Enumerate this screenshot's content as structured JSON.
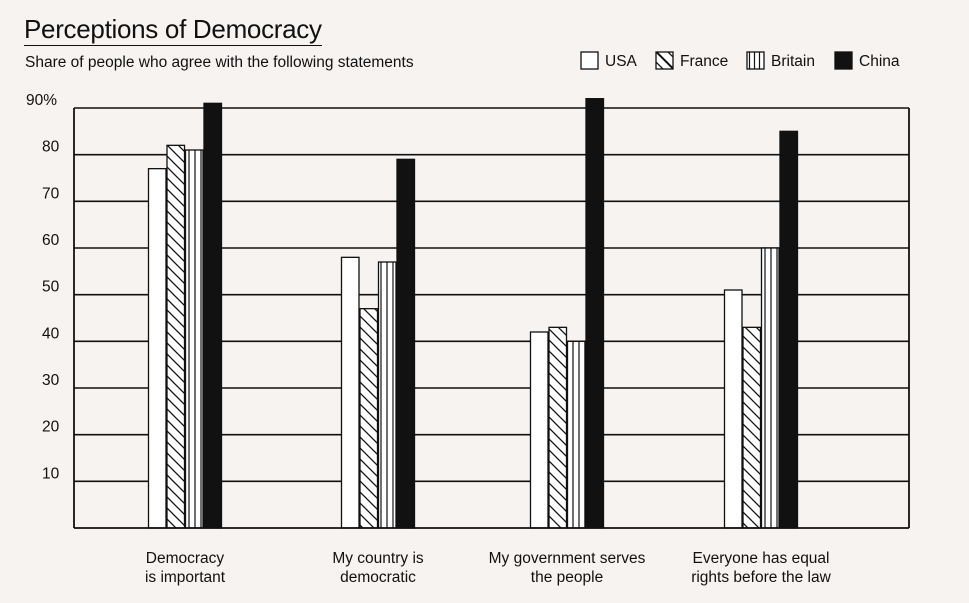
{
  "chart_data": {
    "type": "bar",
    "title": "Perceptions of Democracy",
    "subtitle": "Share of people who agree with the following statements",
    "categories": [
      [
        "Democracy",
        "is important"
      ],
      [
        "My country is",
        "democratic"
      ],
      [
        "My government serves",
        "the people"
      ],
      [
        "Everyone has equal",
        "rights before the law"
      ]
    ],
    "series": [
      {
        "name": "USA",
        "pattern": "empty",
        "values": [
          77,
          58,
          42,
          51
        ]
      },
      {
        "name": "France",
        "pattern": "diagonal",
        "values": [
          82,
          47,
          43,
          43
        ]
      },
      {
        "name": "Britain",
        "pattern": "vertical",
        "values": [
          81,
          57,
          40,
          60
        ]
      },
      {
        "name": "China",
        "pattern": "solid",
        "values": [
          91,
          79,
          92,
          85
        ]
      }
    ],
    "yticks": [
      "10",
      "20",
      "30",
      "40",
      "50",
      "60",
      "70",
      "80",
      "90%"
    ],
    "ylim": [
      0,
      90
    ],
    "xlabel": "",
    "ylabel": "",
    "legend_position": "top-right",
    "colors": {
      "ink": "#111111",
      "background": "#f6f3f0",
      "bar_fill": "#ffffff"
    }
  }
}
